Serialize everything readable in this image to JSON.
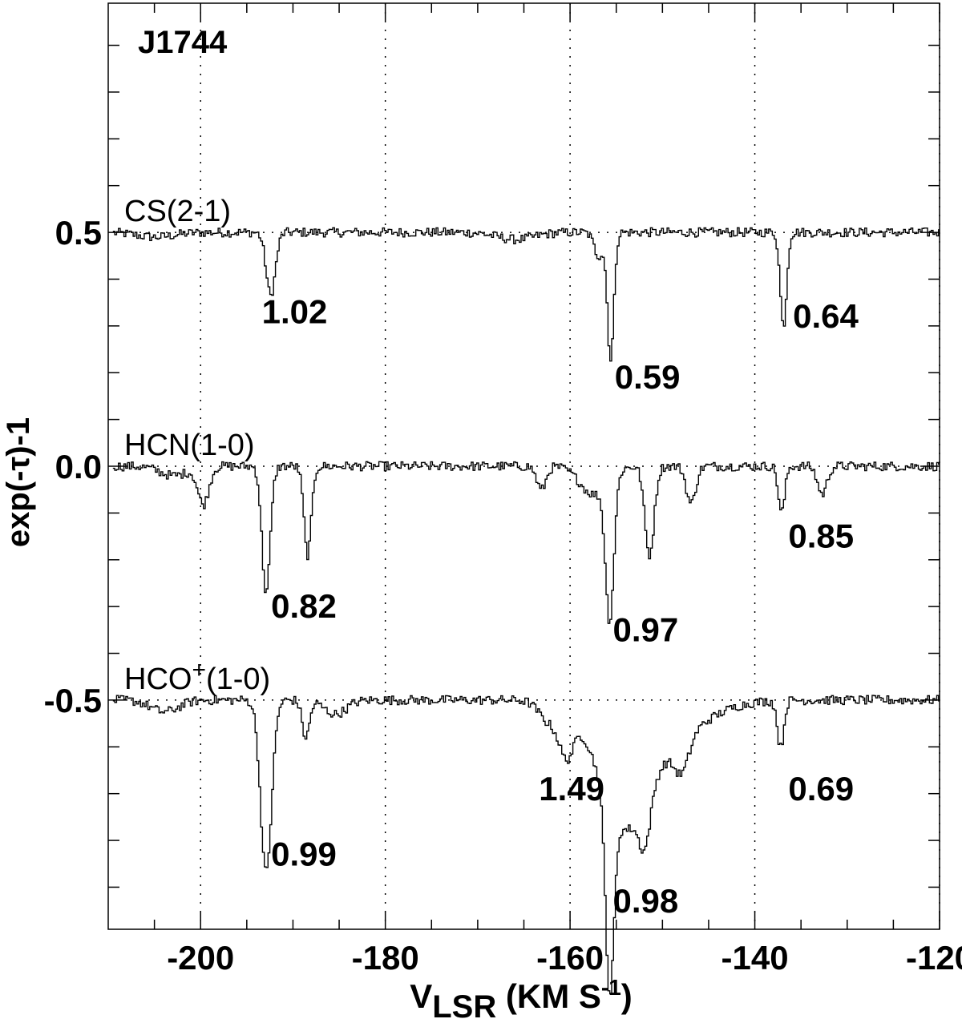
{
  "chart_data": {
    "type": "line",
    "title": "J1744",
    "xlabel": {
      "main": "V",
      "sub": "LSR",
      "units": " (KM S",
      "sup": "-1",
      "close": ")"
    },
    "ylabel": "exp(-τ)-1",
    "xlim": [
      -210,
      -120
    ],
    "ylim": [
      -0.99,
      0.99
    ],
    "x_ticks": [
      -200,
      -180,
      -160,
      -140,
      -120
    ],
    "x_tick_labels": [
      "-200",
      "-180",
      "-160",
      "-140",
      "-120"
    ],
    "y_ticks": [
      0.5,
      0.0,
      -0.5
    ],
    "y_tick_labels": [
      "0.5",
      "0.0",
      "-0.5"
    ],
    "grid": {
      "vertical_dotted_at": [
        -200,
        -180,
        -160,
        -140,
        -120
      ],
      "baseline_dotted_at": [
        0.5,
        0.0,
        -0.5
      ]
    },
    "legend": "none",
    "series": [
      {
        "name": "CS(2-1)",
        "name_main": "CS(2-1)",
        "name_sup": "",
        "name_tail": "",
        "offset": 0.5,
        "components": [
          {
            "v": -192.5,
            "depth": 0.135,
            "width": 0.5
          },
          {
            "v": -155.7,
            "depth": 0.27,
            "width": 0.35
          },
          {
            "v": -157.0,
            "depth": 0.05,
            "width": 0.5
          },
          {
            "v": -137.0,
            "depth": 0.2,
            "width": 0.35
          },
          {
            "v": -166.0,
            "depth": 0.015,
            "width": 2.0
          },
          {
            "v": -205.0,
            "depth": 0.01,
            "width": 2.0
          }
        ],
        "peak_labels": [
          {
            "text": "1.02",
            "v": -192.5,
            "y": 0.33
          },
          {
            "text": "0.59",
            "v": -154.3,
            "y": 0.19
          },
          {
            "text": "0.64",
            "v": -135.0,
            "y": 0.32
          }
        ]
      },
      {
        "name": "HCN(1-0)",
        "name_main": "HCN(1-0)",
        "name_sup": "",
        "name_tail": "",
        "offset": 0.0,
        "components": [
          {
            "v": -193.0,
            "depth": 0.27,
            "width": 0.45
          },
          {
            "v": -188.5,
            "depth": 0.19,
            "width": 0.4
          },
          {
            "v": -199.8,
            "depth": 0.08,
            "width": 0.6
          },
          {
            "v": -163.2,
            "depth": 0.05,
            "width": 0.5
          },
          {
            "v": -155.8,
            "depth": 0.3,
            "width": 0.45
          },
          {
            "v": -151.5,
            "depth": 0.19,
            "width": 0.5
          },
          {
            "v": -147.0,
            "depth": 0.08,
            "width": 0.5
          },
          {
            "v": -137.2,
            "depth": 0.1,
            "width": 0.35
          },
          {
            "v": -132.8,
            "depth": 0.06,
            "width": 0.5
          },
          {
            "v": -157.5,
            "depth": 0.06,
            "width": 1.5
          },
          {
            "v": -203.0,
            "depth": 0.02,
            "width": 1.5
          }
        ],
        "peak_labels": [
          {
            "text": "0.82",
            "v": -191.5,
            "y": -0.3
          },
          {
            "text": "0.97",
            "v": -154.5,
            "y": -0.35
          },
          {
            "text": "0.85",
            "v": -135.5,
            "y": -0.15
          }
        ]
      },
      {
        "name": "HCO+(1-0)",
        "name_main": "HCO",
        "name_sup": "+",
        "name_tail": "(1-0)",
        "offset": -0.5,
        "components": [
          {
            "v": -193.0,
            "depth": 0.37,
            "width": 0.6
          },
          {
            "v": -188.7,
            "depth": 0.08,
            "width": 0.4
          },
          {
            "v": -185.5,
            "depth": 0.03,
            "width": 1.2
          },
          {
            "v": -204.0,
            "depth": 0.025,
            "width": 1.5
          },
          {
            "v": -160.5,
            "depth": 0.1,
            "width": 0.8
          },
          {
            "v": -162.5,
            "depth": 0.04,
            "width": 1.0
          },
          {
            "v": -155.8,
            "depth": 0.4,
            "width": 0.45
          },
          {
            "v": -154.5,
            "depth": 0.2,
            "width": 2.5
          },
          {
            "v": -152.0,
            "depth": 0.1,
            "width": 0.6
          },
          {
            "v": -148.0,
            "depth": 0.07,
            "width": 0.8
          },
          {
            "v": -151.0,
            "depth": 0.1,
            "width": 4.5
          },
          {
            "v": -137.3,
            "depth": 0.1,
            "width": 0.35
          }
        ],
        "peak_labels": [
          {
            "text": "1.49",
            "v": -162.5,
            "y": -0.69
          },
          {
            "text": "0.99",
            "v": -191.5,
            "y": -0.83
          },
          {
            "text": "0.98",
            "v": -154.5,
            "y": -0.93
          },
          {
            "text": "0.69",
            "v": -135.5,
            "y": -0.69
          }
        ]
      }
    ]
  }
}
